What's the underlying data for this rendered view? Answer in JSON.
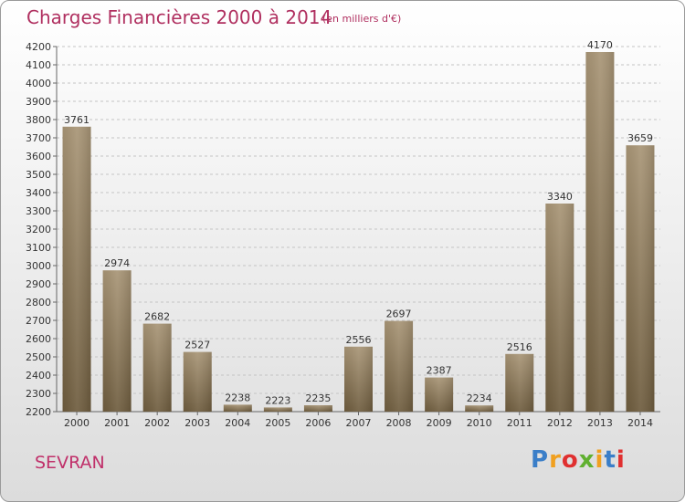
{
  "chart_data": {
    "type": "bar",
    "title": "Charges Financières 2000 à 2014",
    "subtitle": "(en milliers d'€)",
    "categories": [
      "2000",
      "2001",
      "2002",
      "2003",
      "2004",
      "2005",
      "2006",
      "2007",
      "2008",
      "2009",
      "2010",
      "2011",
      "2012",
      "2013",
      "2014"
    ],
    "values": [
      3761,
      2974,
      2682,
      2527,
      2238,
      2223,
      2235,
      2556,
      2697,
      2387,
      2234,
      2516,
      3340,
      4170,
      3659
    ],
    "ylim": [
      2200,
      4200
    ],
    "yticks": [
      2200,
      2300,
      2400,
      2500,
      2600,
      2700,
      2800,
      2900,
      3000,
      3100,
      3200,
      3300,
      3400,
      3500,
      3600,
      3700,
      3800,
      3900,
      4000,
      4100,
      4200
    ],
    "grid": true,
    "bar_color": "#8c7a5b"
  },
  "footer": {
    "city": "SEVRAN",
    "logo_letters": [
      "P",
      "r",
      "o",
      "x",
      "i",
      "t",
      "i"
    ],
    "logo_colors": [
      "#3a7ec8",
      "#f0a020",
      "#e03030",
      "#60b030",
      "#f0a020",
      "#3a7ec8",
      "#e03030"
    ]
  }
}
